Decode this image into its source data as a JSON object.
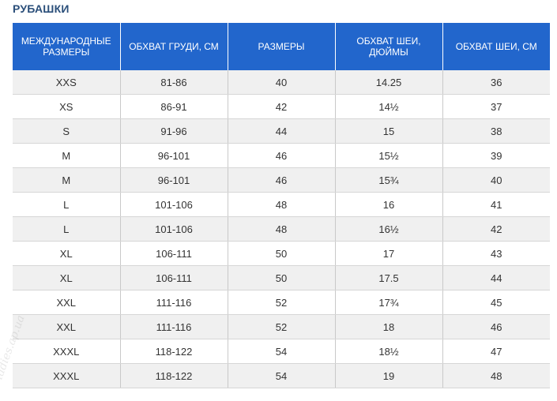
{
  "title": "РУБАШКИ",
  "watermark": "ladies.ap.ua",
  "headers": [
    "МЕЖДУНАРОДНЫЕ РАЗМЕРЫ",
    "ОБХВАТ ГРУДИ, СМ",
    "РАЗМЕРЫ",
    "ОБХВАТ ШЕИ, ДЮЙМЫ",
    "ОБХВАТ ШЕИ, СМ"
  ],
  "rows": [
    [
      "XXS",
      "81-86",
      "40",
      "14.25",
      "36"
    ],
    [
      "XS",
      "86-91",
      "42",
      "14½",
      "37"
    ],
    [
      "S",
      "91-96",
      "44",
      "15",
      "38"
    ],
    [
      "M",
      "96-101",
      "46",
      "15½",
      "39"
    ],
    [
      "M",
      "96-101",
      "46",
      "15¾",
      "40"
    ],
    [
      "L",
      "101-106",
      "48",
      "16",
      "41"
    ],
    [
      "L",
      "101-106",
      "48",
      "16½",
      "42"
    ],
    [
      "XL",
      "106-111",
      "50",
      "17",
      "43"
    ],
    [
      "XL",
      "106-111",
      "50",
      "17.5",
      "44"
    ],
    [
      "XXL",
      "111-116",
      "52",
      "17¾",
      "45"
    ],
    [
      "XXL",
      "111-116",
      "52",
      "18",
      "46"
    ],
    [
      "XXXL",
      "118-122",
      "54",
      "18½",
      "47"
    ],
    [
      "XXXL",
      "118-122",
      "54",
      "19",
      "48"
    ]
  ],
  "colors": {
    "header_bg": "#2266cc",
    "title": "#2b4f7a",
    "stripe": "#f0f0f0"
  }
}
